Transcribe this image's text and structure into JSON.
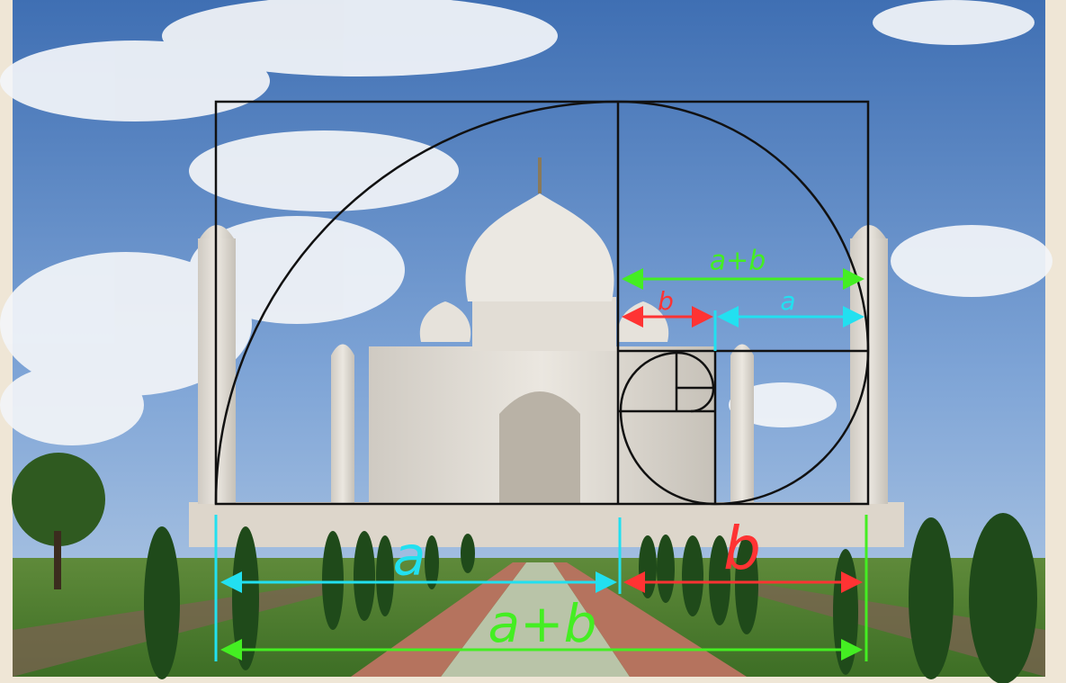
{
  "annotations": [
    "a+b",
    "b",
    "a",
    "a",
    "b",
    "a+b"
  ]
}
